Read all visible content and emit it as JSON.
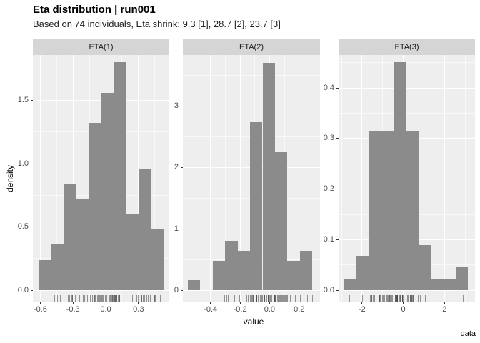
{
  "title": "Eta distribution | run001",
  "subtitle": "Based on 74 individuals, Eta shrink: 9.3 [1], 28.7 [2], 23.7 [3]",
  "caption": "data",
  "axis": {
    "x_label": "value",
    "y_label": "density"
  },
  "colors": {
    "bar": "#8B8B8B",
    "panel_bg": "#EEEEEE",
    "strip_bg": "#D5D5D5",
    "grid_major": "#FFFFFF",
    "grid_minor": "rgba(255,255,255,0.6)",
    "tick_mark": "#333333",
    "tick_text": "#4D4D4D",
    "rug": "rgba(70,70,70,0.55)",
    "text": "#000000"
  },
  "chart_data": [
    {
      "type": "histogram",
      "facet": "ETA(1)",
      "xlim": [
        -0.668,
        0.583
      ],
      "ylim": [
        -0.096,
        1.859
      ],
      "x_ticks": [
        -0.6,
        -0.3,
        0.0,
        0.3
      ],
      "x_tick_labels": [
        "-0.6",
        "-0.3",
        "0.0",
        "0.3"
      ],
      "x_minor": [
        -0.45,
        -0.15,
        0.15,
        0.45
      ],
      "y_ticks": [
        0.0,
        0.5,
        1.0,
        1.5
      ],
      "y_tick_labels": [
        "0.0",
        "0.5",
        "1.0",
        "1.5"
      ],
      "y_minor": [
        0.25,
        0.75,
        1.25,
        1.75
      ],
      "bars": [
        [
          -0.616,
          -0.5014,
          0.24
        ],
        [
          -0.5014,
          -0.3868,
          0.36
        ],
        [
          -0.3868,
          -0.2722,
          0.84
        ],
        [
          -0.2722,
          -0.1576,
          0.72
        ],
        [
          -0.1576,
          -0.043,
          1.32
        ],
        [
          -0.043,
          0.0716,
          1.56
        ],
        [
          0.0716,
          0.1862,
          1.8
        ],
        [
          0.1862,
          0.3008,
          0.6
        ],
        [
          0.3008,
          0.4154,
          0.96
        ],
        [
          0.4154,
          0.53,
          0.48
        ]
      ],
      "rug_counts": [
        2,
        3,
        7,
        6,
        11,
        13,
        15,
        5,
        8,
        4
      ]
    },
    {
      "type": "histogram",
      "facet": "ETA(2)",
      "xlim": [
        -0.587,
        0.341
      ],
      "ylim": [
        -0.197,
        3.828
      ],
      "x_ticks": [
        -0.4,
        -0.2,
        0.0,
        0.2
      ],
      "x_tick_labels": [
        "-0.4",
        "-0.2",
        "0.0",
        "0.2"
      ],
      "x_minor": [
        -0.5,
        -0.3,
        -0.1,
        0.1,
        0.3
      ],
      "y_ticks": [
        0,
        1,
        2,
        3
      ],
      "y_tick_labels": [
        "0",
        "1",
        "2",
        "3"
      ],
      "y_minor": [
        0.5,
        1.5,
        2.5,
        3.5
      ],
      "bars": [
        [
          -0.553,
          -0.469,
          0.161
        ],
        [
          -0.384,
          -0.3,
          0.483
        ],
        [
          -0.3,
          -0.216,
          0.804
        ],
        [
          -0.216,
          -0.132,
          0.643
        ],
        [
          -0.132,
          -0.048,
          2.735
        ],
        [
          -0.048,
          0.036,
          3.7
        ],
        [
          0.036,
          0.12,
          2.252
        ],
        [
          0.12,
          0.204,
          0.483
        ],
        [
          0.204,
          0.288,
          0.643
        ]
      ],
      "rug_counts": [
        1,
        3,
        5,
        4,
        17,
        23,
        14,
        3,
        4
      ]
    },
    {
      "type": "histogram",
      "facet": "ETA(3)",
      "xlim": [
        -3.14,
        3.48
      ],
      "ylim": [
        -0.0236,
        0.465
      ],
      "x_ticks": [
        -2,
        0,
        2
      ],
      "x_tick_labels": [
        "-2",
        "0",
        "2"
      ],
      "x_minor": [
        -3,
        -1,
        1,
        3
      ],
      "y_ticks": [
        0.0,
        0.1,
        0.2,
        0.3,
        0.4
      ],
      "y_tick_labels": [
        "0.0",
        "0.1",
        "0.2",
        "0.3",
        "0.4"
      ],
      "y_minor": [
        0.05,
        0.15,
        0.25,
        0.35,
        0.45
      ],
      "bars": [
        [
          -2.86,
          -2.26,
          0.0225
        ],
        [
          -2.26,
          -1.66,
          0.0676
        ],
        [
          -1.66,
          -1.06,
          0.3153
        ],
        [
          -1.06,
          -0.46,
          0.3153
        ],
        [
          -0.46,
          0.14,
          0.4505
        ],
        [
          0.14,
          0.74,
          0.3153
        ],
        [
          0.74,
          1.34,
          0.0901
        ],
        [
          1.34,
          1.94,
          0.0225
        ],
        [
          1.94,
          2.54,
          0.0225
        ],
        [
          2.54,
          3.14,
          0.045
        ]
      ],
      "rug_counts": [
        1,
        3,
        14,
        14,
        20,
        14,
        4,
        1,
        1,
        2
      ]
    }
  ]
}
